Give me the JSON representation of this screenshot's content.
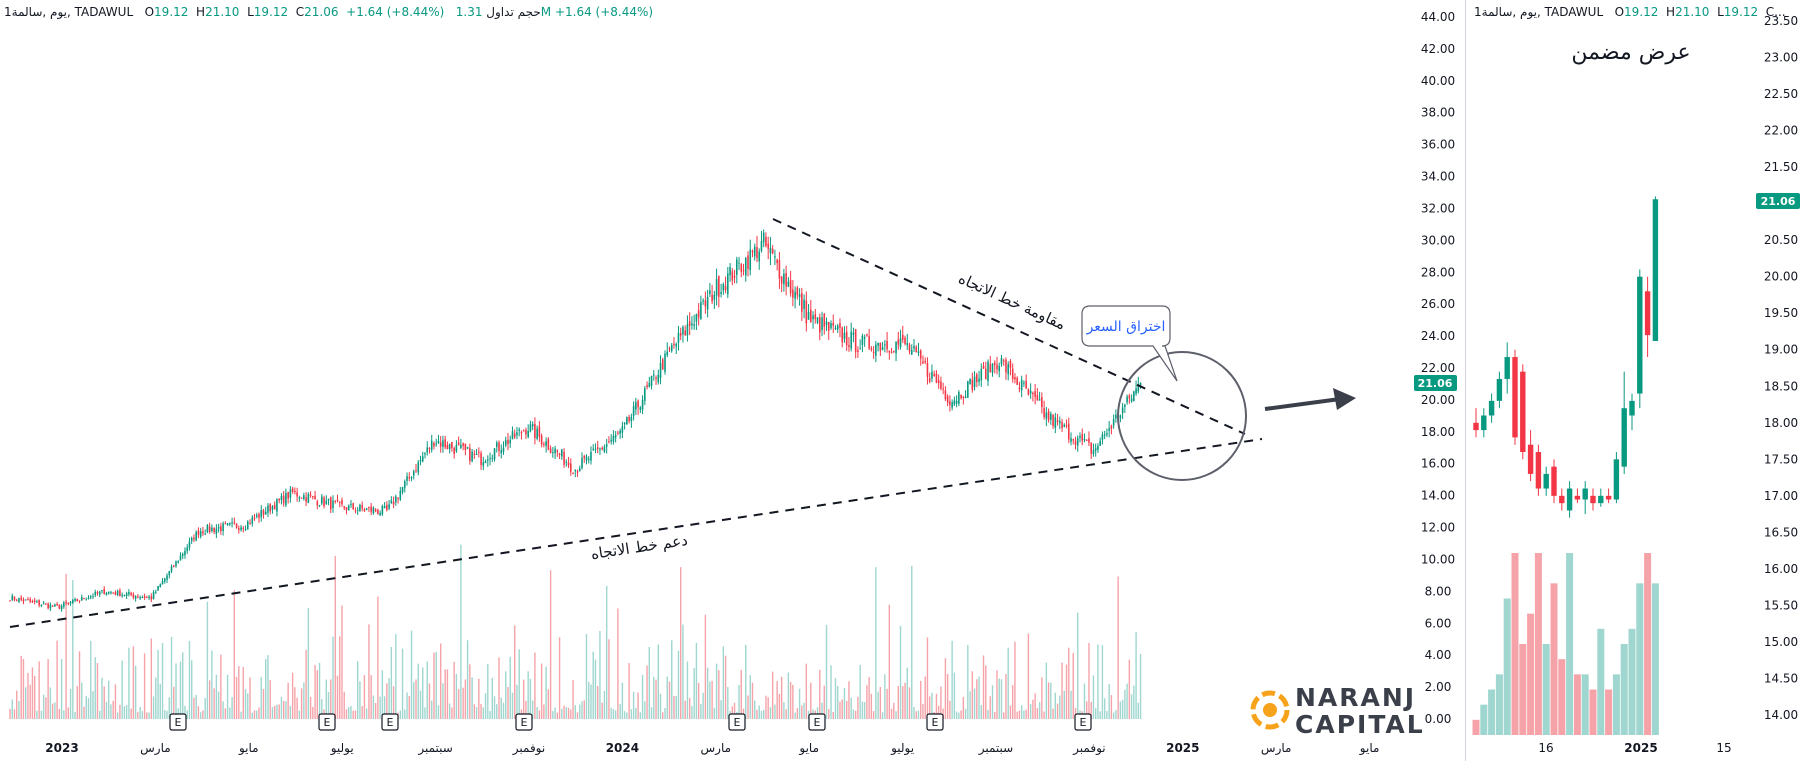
{
  "main_header": {
    "symbol": "1يوم ,سالمة, TADAWUL",
    "o_label": "O",
    "o_value": "19.12",
    "h_label": "H",
    "h_value": "21.10",
    "l_label": "L",
    "l_value": "19.12",
    "c_label": "C",
    "c_value": "21.06",
    "change": "+1.64 (+8.44%)",
    "volume_label": "حجم تداول",
    "volume_value": "1.31M",
    "volume_change": "+1.64 (+8.44%)"
  },
  "inset_header": {
    "symbol": "1يوم ,سالمة, TADAWUL",
    "o_label": "O",
    "o_value": "19.12",
    "h_label": "H",
    "h_value": "21.10",
    "l_label": "L",
    "l_value": "19.12",
    "c_more": "C..."
  },
  "annotations": {
    "resistance": "مقاومة خط الاتجاه",
    "support": "دعم خط الاتجاه",
    "breakout": "اختراق السعر",
    "zoom_title": "عرض مضمن"
  },
  "logo": {
    "line1": "NARANJ",
    "line2": "CAPITAL"
  },
  "colors": {
    "up": "#089981",
    "down": "#f23645",
    "vol_up": "#9fd6cf",
    "vol_down": "#f5a3a9",
    "bubble_text": "#2962ff",
    "logo_orange": "#f7a21b",
    "logo_text": "#3a3f4a"
  },
  "chart_data": [
    {
      "type": "candlestick",
      "title": "",
      "y_ticks": [
        "44.00",
        "42.00",
        "40.00",
        "38.00",
        "36.00",
        "34.00",
        "32.00",
        "30.00",
        "28.00",
        "26.00",
        "24.00",
        "22.00",
        "20.00",
        "18.00",
        "16.00",
        "14.00",
        "12.00",
        "10.00",
        "8.00",
        "6.00",
        "4.00",
        "2.00",
        "0.00"
      ],
      "x_ticks": [
        "2023",
        "مارس",
        "مايو",
        "يوليو",
        "سبتمبر",
        "نوفمبر",
        "2024",
        "مارس",
        "مايو",
        "يوليو",
        "سبتمبر",
        "نوفمبر",
        "2025",
        "مارس",
        "مايو"
      ],
      "ylim": [
        0,
        44
      ],
      "last_price": "21.06",
      "earnings_marker": "E",
      "earnings_count": 8,
      "price_path": [
        {
          "date": "2023-01",
          "close": 7.6
        },
        {
          "date": "2023-02",
          "close": 7.0
        },
        {
          "date": "2023-03",
          "close": 8.0
        },
        {
          "date": "2023-04",
          "close": 7.6
        },
        {
          "date": "2023-05",
          "close": 11.8
        },
        {
          "date": "2023-06",
          "close": 12.2
        },
        {
          "date": "2023-07",
          "close": 14.2
        },
        {
          "date": "2023-08",
          "close": 13.3
        },
        {
          "date": "2023-09",
          "close": 13.0
        },
        {
          "date": "2023-10",
          "close": 17.5
        },
        {
          "date": "2023-11",
          "close": 16.3
        },
        {
          "date": "2023-12",
          "close": 18.3
        },
        {
          "date": "2024-01",
          "close": 15.7
        },
        {
          "date": "2024-02",
          "close": 18.0
        },
        {
          "date": "2024-03",
          "close": 23.0
        },
        {
          "date": "2024-04",
          "close": 27.0
        },
        {
          "date": "2024-05",
          "close": 29.8
        },
        {
          "date": "2024-06",
          "close": 25.0
        },
        {
          "date": "2024-07",
          "close": 23.5
        },
        {
          "date": "2024-08",
          "close": 23.5
        },
        {
          "date": "2024-09",
          "close": 20.0
        },
        {
          "date": "2024-10",
          "close": 22.5
        },
        {
          "date": "2024-11",
          "close": 19.0
        },
        {
          "date": "2024-12",
          "close": 16.8
        },
        {
          "date": "2025-01",
          "close": 21.06
        }
      ],
      "trendlines": [
        {
          "name": "resistance",
          "from": {
            "date": "2024-04",
            "price": 31.5
          },
          "to": {
            "date": "2025-03",
            "price": 17.3
          }
        },
        {
          "name": "support",
          "from": {
            "date": "2023-01",
            "price": 5.0
          },
          "to": {
            "date": "2025-03",
            "price": 18.0
          }
        }
      ]
    },
    {
      "type": "candlestick",
      "title": "",
      "y_ticks": [
        "23.50",
        "23.00",
        "22.50",
        "22.00",
        "21.50",
        "21.00",
        "20.50",
        "20.00",
        "19.50",
        "19.00",
        "18.50",
        "18.00",
        "17.50",
        "17.00",
        "16.50",
        "16.00",
        "15.50",
        "15.00",
        "14.50",
        "14.00"
      ],
      "x_ticks": [
        "16",
        "2025",
        "15"
      ],
      "ylim": [
        14,
        23.5
      ],
      "last_price": "21.06",
      "candles": [
        {
          "o": 18.0,
          "h": 18.2,
          "l": 17.8,
          "c": 17.9
        },
        {
          "o": 17.9,
          "h": 18.2,
          "l": 17.8,
          "c": 18.1
        },
        {
          "o": 18.1,
          "h": 18.4,
          "l": 18.0,
          "c": 18.3
        },
        {
          "o": 18.3,
          "h": 18.7,
          "l": 18.2,
          "c": 18.6
        },
        {
          "o": 18.6,
          "h": 19.1,
          "l": 18.4,
          "c": 18.9
        },
        {
          "o": 18.9,
          "h": 19.0,
          "l": 17.7,
          "c": 17.8
        },
        {
          "o": 18.7,
          "h": 18.8,
          "l": 17.5,
          "c": 17.6
        },
        {
          "o": 17.7,
          "h": 17.9,
          "l": 17.2,
          "c": 17.3
        },
        {
          "o": 17.6,
          "h": 17.7,
          "l": 17.0,
          "c": 17.1
        },
        {
          "o": 17.1,
          "h": 17.4,
          "l": 17.0,
          "c": 17.3
        },
        {
          "o": 17.4,
          "h": 17.5,
          "l": 16.9,
          "c": 17.0
        },
        {
          "o": 17.0,
          "h": 17.1,
          "l": 16.8,
          "c": 16.9
        },
        {
          "o": 16.8,
          "h": 17.2,
          "l": 16.7,
          "c": 17.1
        },
        {
          "o": 17.0,
          "h": 17.1,
          "l": 16.9,
          "c": 16.95
        },
        {
          "o": 16.95,
          "h": 17.2,
          "l": 16.75,
          "c": 17.1
        },
        {
          "o": 17.0,
          "h": 17.1,
          "l": 16.8,
          "c": 16.9
        },
        {
          "o": 16.9,
          "h": 17.1,
          "l": 16.85,
          "c": 17.0
        },
        {
          "o": 17.0,
          "h": 17.1,
          "l": 16.9,
          "c": 16.95
        },
        {
          "o": 16.95,
          "h": 17.6,
          "l": 16.9,
          "c": 17.5
        },
        {
          "o": 17.4,
          "h": 18.7,
          "l": 17.3,
          "c": 18.2
        },
        {
          "o": 18.1,
          "h": 18.4,
          "l": 17.9,
          "c": 18.3
        },
        {
          "o": 18.4,
          "h": 20.1,
          "l": 18.2,
          "c": 20.0
        },
        {
          "o": 19.8,
          "h": 20.0,
          "l": 18.9,
          "c": 19.2
        },
        {
          "o": 19.12,
          "h": 21.1,
          "l": 19.12,
          "c": 21.06
        }
      ],
      "volumes": [
        1,
        2,
        3,
        4,
        9,
        12,
        6,
        8,
        12,
        6,
        10,
        5,
        12,
        4,
        4,
        3,
        7,
        3,
        4,
        6,
        7,
        10,
        12,
        10
      ]
    }
  ]
}
